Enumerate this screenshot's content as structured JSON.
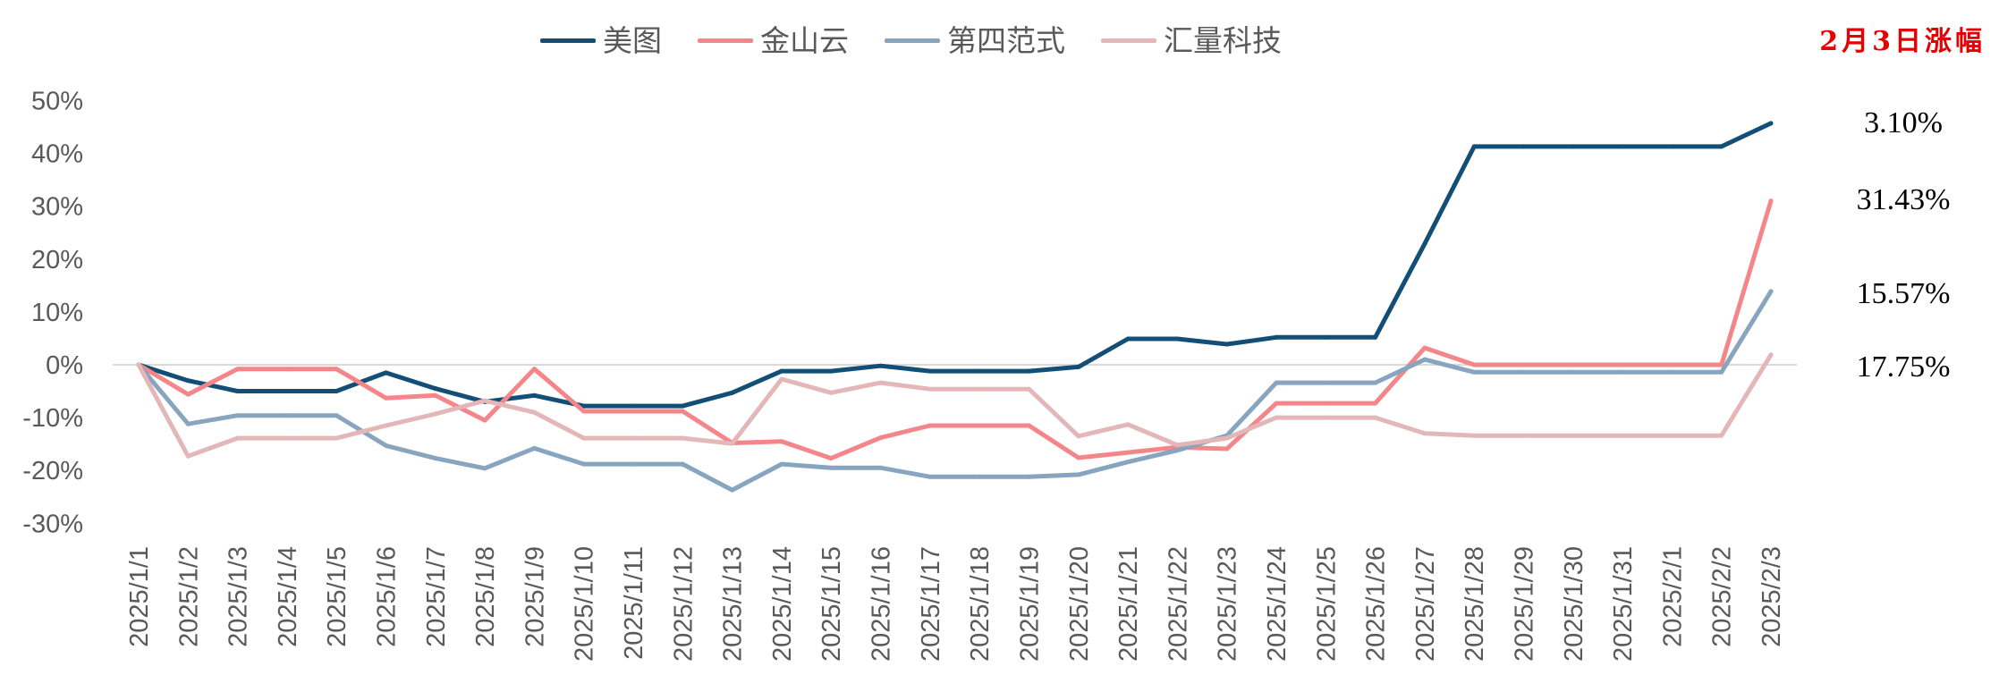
{
  "chart_data": {
    "type": "line",
    "categories": [
      "2025/1/1",
      "2025/1/2",
      "2025/1/3",
      "2025/1/4",
      "2025/1/5",
      "2025/1/6",
      "2025/1/7",
      "2025/1/8",
      "2025/1/9",
      "2025/1/10",
      "2025/1/11",
      "2025/1/12",
      "2025/1/13",
      "2025/1/14",
      "2025/1/15",
      "2025/1/16",
      "2025/1/17",
      "2025/1/18",
      "2025/1/19",
      "2025/1/20",
      "2025/1/21",
      "2025/1/22",
      "2025/1/23",
      "2025/1/24",
      "2025/1/25",
      "2025/1/26",
      "2025/1/27",
      "2025/1/28",
      "2025/1/29",
      "2025/1/30",
      "2025/1/31",
      "2025/2/1",
      "2025/2/2",
      "2025/2/3"
    ],
    "series": [
      {
        "name": "美图",
        "color": "#134e77",
        "values": [
          0,
          -3.0,
          -5.0,
          -5.0,
          -5.0,
          -1.5,
          -4.5,
          -7.0,
          -5.8,
          -7.8,
          -7.8,
          -7.8,
          -5.3,
          -1.2,
          -1.2,
          -0.2,
          -1.2,
          -1.2,
          -1.2,
          -0.4,
          4.9,
          4.9,
          3.9,
          5.2,
          5.2,
          5.2,
          22.9,
          41.3,
          41.3,
          41.3,
          41.3,
          41.3,
          41.3,
          45.7
        ]
      },
      {
        "name": "金山云",
        "color": "#f4868a",
        "values": [
          0,
          -5.6,
          -0.8,
          -0.8,
          -0.8,
          -6.3,
          -5.8,
          -10.5,
          -0.8,
          -8.8,
          -8.8,
          -8.8,
          -14.8,
          -14.5,
          -17.7,
          -13.8,
          -11.5,
          -11.5,
          -11.5,
          -17.6,
          -16.6,
          -15.6,
          -15.9,
          -7.3,
          -7.3,
          -7.3,
          3.2,
          0,
          0,
          0,
          0,
          0,
          0,
          31.0
        ]
      },
      {
        "name": "第四范式",
        "color": "#87a5bf",
        "values": [
          0,
          -11.2,
          -9.6,
          -9.6,
          -9.6,
          -15.3,
          -17.7,
          -19.6,
          -15.8,
          -18.8,
          -18.8,
          -18.8,
          -23.7,
          -18.8,
          -19.5,
          -19.5,
          -21.2,
          -21.2,
          -21.2,
          -20.8,
          -18.4,
          -16.2,
          -13.4,
          -3.4,
          -3.4,
          -3.4,
          1.0,
          -1.4,
          -1.4,
          -1.4,
          -1.4,
          -1.4,
          -1.4,
          13.9
        ]
      },
      {
        "name": "汇量科技",
        "color": "#e3b7b8",
        "values": [
          0,
          -17.3,
          -13.9,
          -13.9,
          -13.9,
          -11.5,
          -9.3,
          -6.8,
          -9.0,
          -13.9,
          -13.9,
          -13.9,
          -14.9,
          -2.7,
          -5.3,
          -3.4,
          -4.6,
          -4.6,
          -4.6,
          -13.5,
          -11.3,
          -15.2,
          -13.9,
          -10.0,
          -10.0,
          -10.0,
          -13.0,
          -13.4,
          -13.4,
          -13.4,
          -13.4,
          -13.4,
          -13.4,
          1.9
        ]
      }
    ],
    "ylim": [
      -30,
      50
    ],
    "yticks": [
      50,
      40,
      30,
      20,
      10,
      0,
      -10,
      -20,
      -30
    ],
    "ytick_labels": [
      "50%",
      "40%",
      "30%",
      "20%",
      "10%",
      "0%",
      "-10%",
      "-20%",
      "-30%"
    ],
    "grid": false,
    "zero_line": true,
    "legend_position": "top"
  },
  "annotations": {
    "header": "2月3日涨幅",
    "header_color": "#e60000",
    "values": [
      "3.10%",
      "31.43%",
      "15.57%",
      "17.75%"
    ]
  },
  "colors": {
    "axis_text": "#595959",
    "zero_line": "#d9d9d9"
  }
}
